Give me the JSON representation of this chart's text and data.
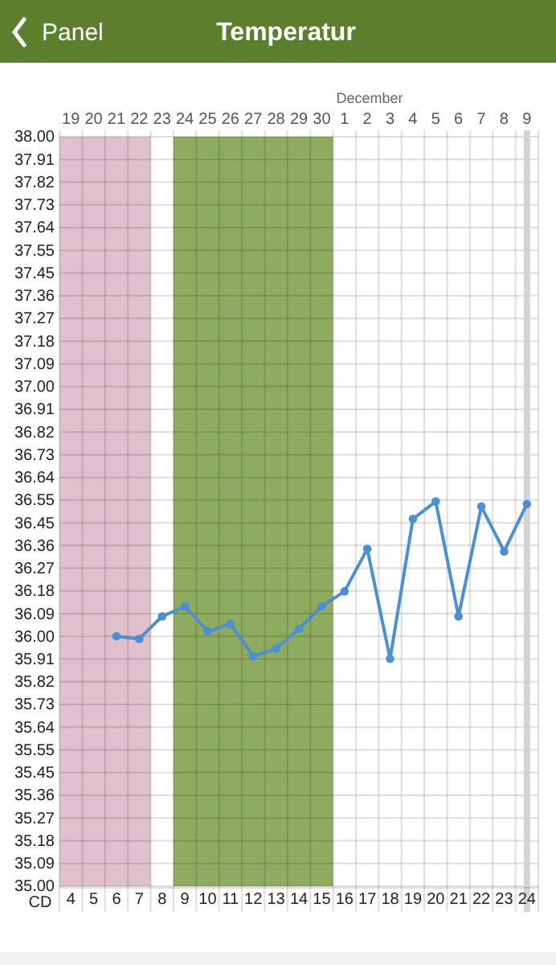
{
  "chart_data": {
    "type": "line",
    "title": "Temperatur",
    "annotations": [
      "Panel",
      "December"
    ],
    "x2label": "CD",
    "categories": [
      "19",
      "20",
      "21",
      "22",
      "23",
      "24",
      "25",
      "26",
      "27",
      "28",
      "29",
      "30",
      "1",
      "2",
      "3",
      "4",
      "5",
      "6",
      "7",
      "8",
      "9"
    ],
    "series": [
      {
        "color": "#4a90d2",
        "values": [
          null,
          null,
          36.0,
          35.99,
          36.08,
          36.12,
          36.02,
          36.05,
          35.92,
          35.95,
          36.03,
          36.12,
          36.18,
          36.35,
          35.91,
          36.47,
          36.54,
          36.08,
          36.52,
          36.34,
          36.53
        ]
      }
    ],
    "x2lim": [
      3.5,
      24.5
    ],
    "x2ticks": [
      4,
      5,
      6,
      7,
      8,
      9,
      10,
      11,
      12,
      13,
      14,
      15,
      16,
      17,
      18,
      19,
      20,
      21,
      22,
      23,
      24
    ],
    "ylim": [
      35.0,
      38.0
    ],
    "yticks": [
      {
        "value": 35.0,
        "label": "35.00"
      },
      {
        "value": 35.0909,
        "label": "35.09"
      },
      {
        "value": 35.1818,
        "label": "35.18"
      },
      {
        "value": 35.2727,
        "label": "35.27"
      },
      {
        "value": 35.3636,
        "label": "35.36"
      },
      {
        "value": 35.4545,
        "label": "35.45"
      },
      {
        "value": 35.5455,
        "label": "35.55"
      },
      {
        "value": 35.6364,
        "label": "35.64"
      },
      {
        "value": 35.7273,
        "label": "35.73"
      },
      {
        "value": 35.8182,
        "label": "35.82"
      },
      {
        "value": 35.9091,
        "label": "35.91"
      },
      {
        "value": 36.0,
        "label": "36.00"
      },
      {
        "value": 36.0909,
        "label": "36.09"
      },
      {
        "value": 36.1818,
        "label": "36.18"
      },
      {
        "value": 36.2727,
        "label": "36.27"
      },
      {
        "value": 36.3636,
        "label": "36.36"
      },
      {
        "value": 36.4545,
        "label": "36.45"
      },
      {
        "value": 36.5455,
        "label": "36.55"
      },
      {
        "value": 36.6364,
        "label": "36.64"
      },
      {
        "value": 36.7273,
        "label": "36.73"
      },
      {
        "value": 36.8182,
        "label": "36.82"
      },
      {
        "value": 36.9091,
        "label": "36.91"
      },
      {
        "value": 37.0,
        "label": "37.00"
      },
      {
        "value": 37.0909,
        "label": "37.09"
      },
      {
        "value": 37.1818,
        "label": "37.18"
      },
      {
        "value": 37.2727,
        "label": "37.27"
      },
      {
        "value": 37.3636,
        "label": "37.36"
      },
      {
        "value": 37.4545,
        "label": "37.45"
      },
      {
        "value": 37.5455,
        "label": "37.55"
      },
      {
        "value": 37.6364,
        "label": "37.64"
      },
      {
        "value": 37.7273,
        "label": "37.73"
      },
      {
        "value": 37.8182,
        "label": "37.82"
      },
      {
        "value": 37.9091,
        "label": "37.91"
      },
      {
        "value": 38.0,
        "label": "38.00"
      }
    ],
    "bands": [
      {
        "axis": "x",
        "from": "19",
        "to": "22",
        "color": "#dfc0cc"
      },
      {
        "axis": "x",
        "from": "24",
        "to": "30",
        "color": "#8fab5f"
      }
    ],
    "ref_lines": [
      {
        "axis": "x",
        "value": "9",
        "color": "#d4d4d4"
      }
    ],
    "grid": true,
    "marker": "circle",
    "line_style": "solid"
  }
}
